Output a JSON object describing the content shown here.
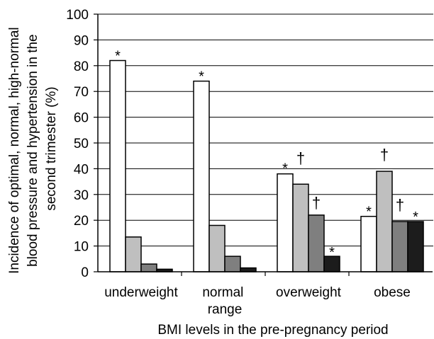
{
  "chart_data": {
    "type": "bar",
    "categories": [
      "underweight",
      "normal range",
      "overweight",
      "obese"
    ],
    "series": [
      {
        "values": [
          82,
          74,
          38,
          21.5
        ],
        "color": "#ffffff"
      },
      {
        "values": [
          13.5,
          18,
          34,
          39
        ],
        "color": "#bfbfbf"
      },
      {
        "values": [
          3,
          6,
          22,
          19.5
        ],
        "color": "#7f7f7f"
      },
      {
        "values": [
          1,
          1.5,
          6,
          19.5
        ],
        "color": "#1c1c1c"
      }
    ],
    "xlabel": "BMI levels in the pre-pregnancy period",
    "ylabel": "Incidence of optimal, normal, high-normal blood pressure and hypertension in the second trimester (%)",
    "ylim": [
      0,
      100
    ],
    "yticks": [
      0,
      10,
      20,
      30,
      40,
      50,
      60,
      70,
      80,
      90,
      100
    ],
    "grid": {
      "x": false,
      "y": true
    },
    "bar_edge_color": "#000000",
    "annotations": [
      {
        "category": "underweight",
        "series_index": 0,
        "text": "*"
      },
      {
        "category": "normal range",
        "series_index": 0,
        "text": "*"
      },
      {
        "category": "overweight",
        "series_index": 0,
        "text": "*"
      },
      {
        "category": "overweight",
        "series_index": 1,
        "text": "†"
      },
      {
        "category": "overweight",
        "series_index": 2,
        "text": "†"
      },
      {
        "category": "overweight",
        "series_index": 3,
        "text": "*"
      },
      {
        "category": "obese",
        "series_index": 0,
        "text": "*"
      },
      {
        "category": "obese",
        "series_index": 1,
        "text": "†"
      },
      {
        "category": "obese",
        "series_index": 2,
        "text": "†"
      },
      {
        "category": "obese",
        "series_index": 3,
        "text": "*"
      }
    ]
  }
}
